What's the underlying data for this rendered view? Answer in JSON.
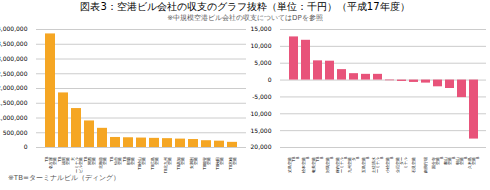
{
  "chart_data": [
    {
      "type": "bar",
      "title": "図表3：空港ビル会社の収支のグラフ抜粋（単位：千円）（平成17年度）",
      "subtitle": "※中規模空港ビル会社の収支についてはDPを参照",
      "annotations": [
        "※TB=ターミナルビル（ディング）"
      ],
      "categories": [
        "TB\n名古屋\n空港",
        "TB\n福岡\n空港",
        "大\nターミナル\nビル空港",
        "TB\n関西\n空港",
        "北海道\n空港",
        "TB\n仙台\n空港",
        "TB\n那覇\n空港",
        "TB松山\n空港",
        "TB広島\n空港",
        "TB北九州\n空港",
        "TB高知\n空港",
        "女満別\n空港",
        "TB能登\n空港",
        "TB秋田\n空港",
        "TB宮崎\n空港"
      ],
      "values": [
        3850000,
        1850000,
        1320000,
        900000,
        650000,
        340000,
        330000,
        320000,
        310000,
        300000,
        285000,
        270000,
        230000,
        215000,
        175000
      ],
      "color": "#F5A623",
      "ylim": [
        0,
        4000000
      ],
      "yticks": [
        0,
        {
          "value": 500000,
          "label": "500,000"
        },
        {
          "value": 1000000,
          "label": "1,000,000"
        },
        {
          "value": 1500000,
          "label": "1,500,000"
        },
        {
          "value": 2000000,
          "label": "2,000,000"
        },
        {
          "value": 2500000,
          "label": "2,500,000"
        },
        {
          "value": 3000000,
          "label": "3,000,000"
        },
        {
          "value": 3500000,
          "label": "3,500,000"
        },
        {
          "value": 4000000,
          "label": "4,000,000"
        }
      ],
      "grid": true
    },
    {
      "type": "bar",
      "categories": [
        "八丈島空港\nTB\nB",
        "松本空港\nB",
        "奄美空港\nTB\nB",
        "対馬空港\nB",
        "稼内空港\nターミナル\nB",
        "北九州空港\nタ\nB",
        "上五島空港\nB",
        "土佐清水\nターミナル\nB",
        "小松空港\nB",
        "企厄空港\nター\nミナル",
        "石見空港",
        "岡南飛行場",
        "国分寺\n空港\nB",
        "書山\n空港\nB",
        "朝山\n空港\nB",
        "久米島\n空港\nB"
      ],
      "values": [
        12800,
        11800,
        5700,
        5600,
        3100,
        1900,
        1700,
        1700,
        -200,
        -400,
        -700,
        -900,
        -2000,
        -2500,
        -5200,
        -17500
      ],
      "color": "#E8537A",
      "ylim": [
        -20000,
        15000
      ],
      "yticks": [
        {
          "value": -20000,
          "label": "-20,000"
        },
        {
          "value": -15000,
          "label": "-15,000"
        },
        {
          "value": -10000,
          "label": "-10,000"
        },
        {
          "value": -5000,
          "label": "-5,000"
        },
        0,
        {
          "value": 5000,
          "label": "5,000"
        },
        {
          "value": 10000,
          "label": "10,000"
        },
        {
          "value": 15000,
          "label": "15,000"
        }
      ],
      "grid": true
    }
  ]
}
